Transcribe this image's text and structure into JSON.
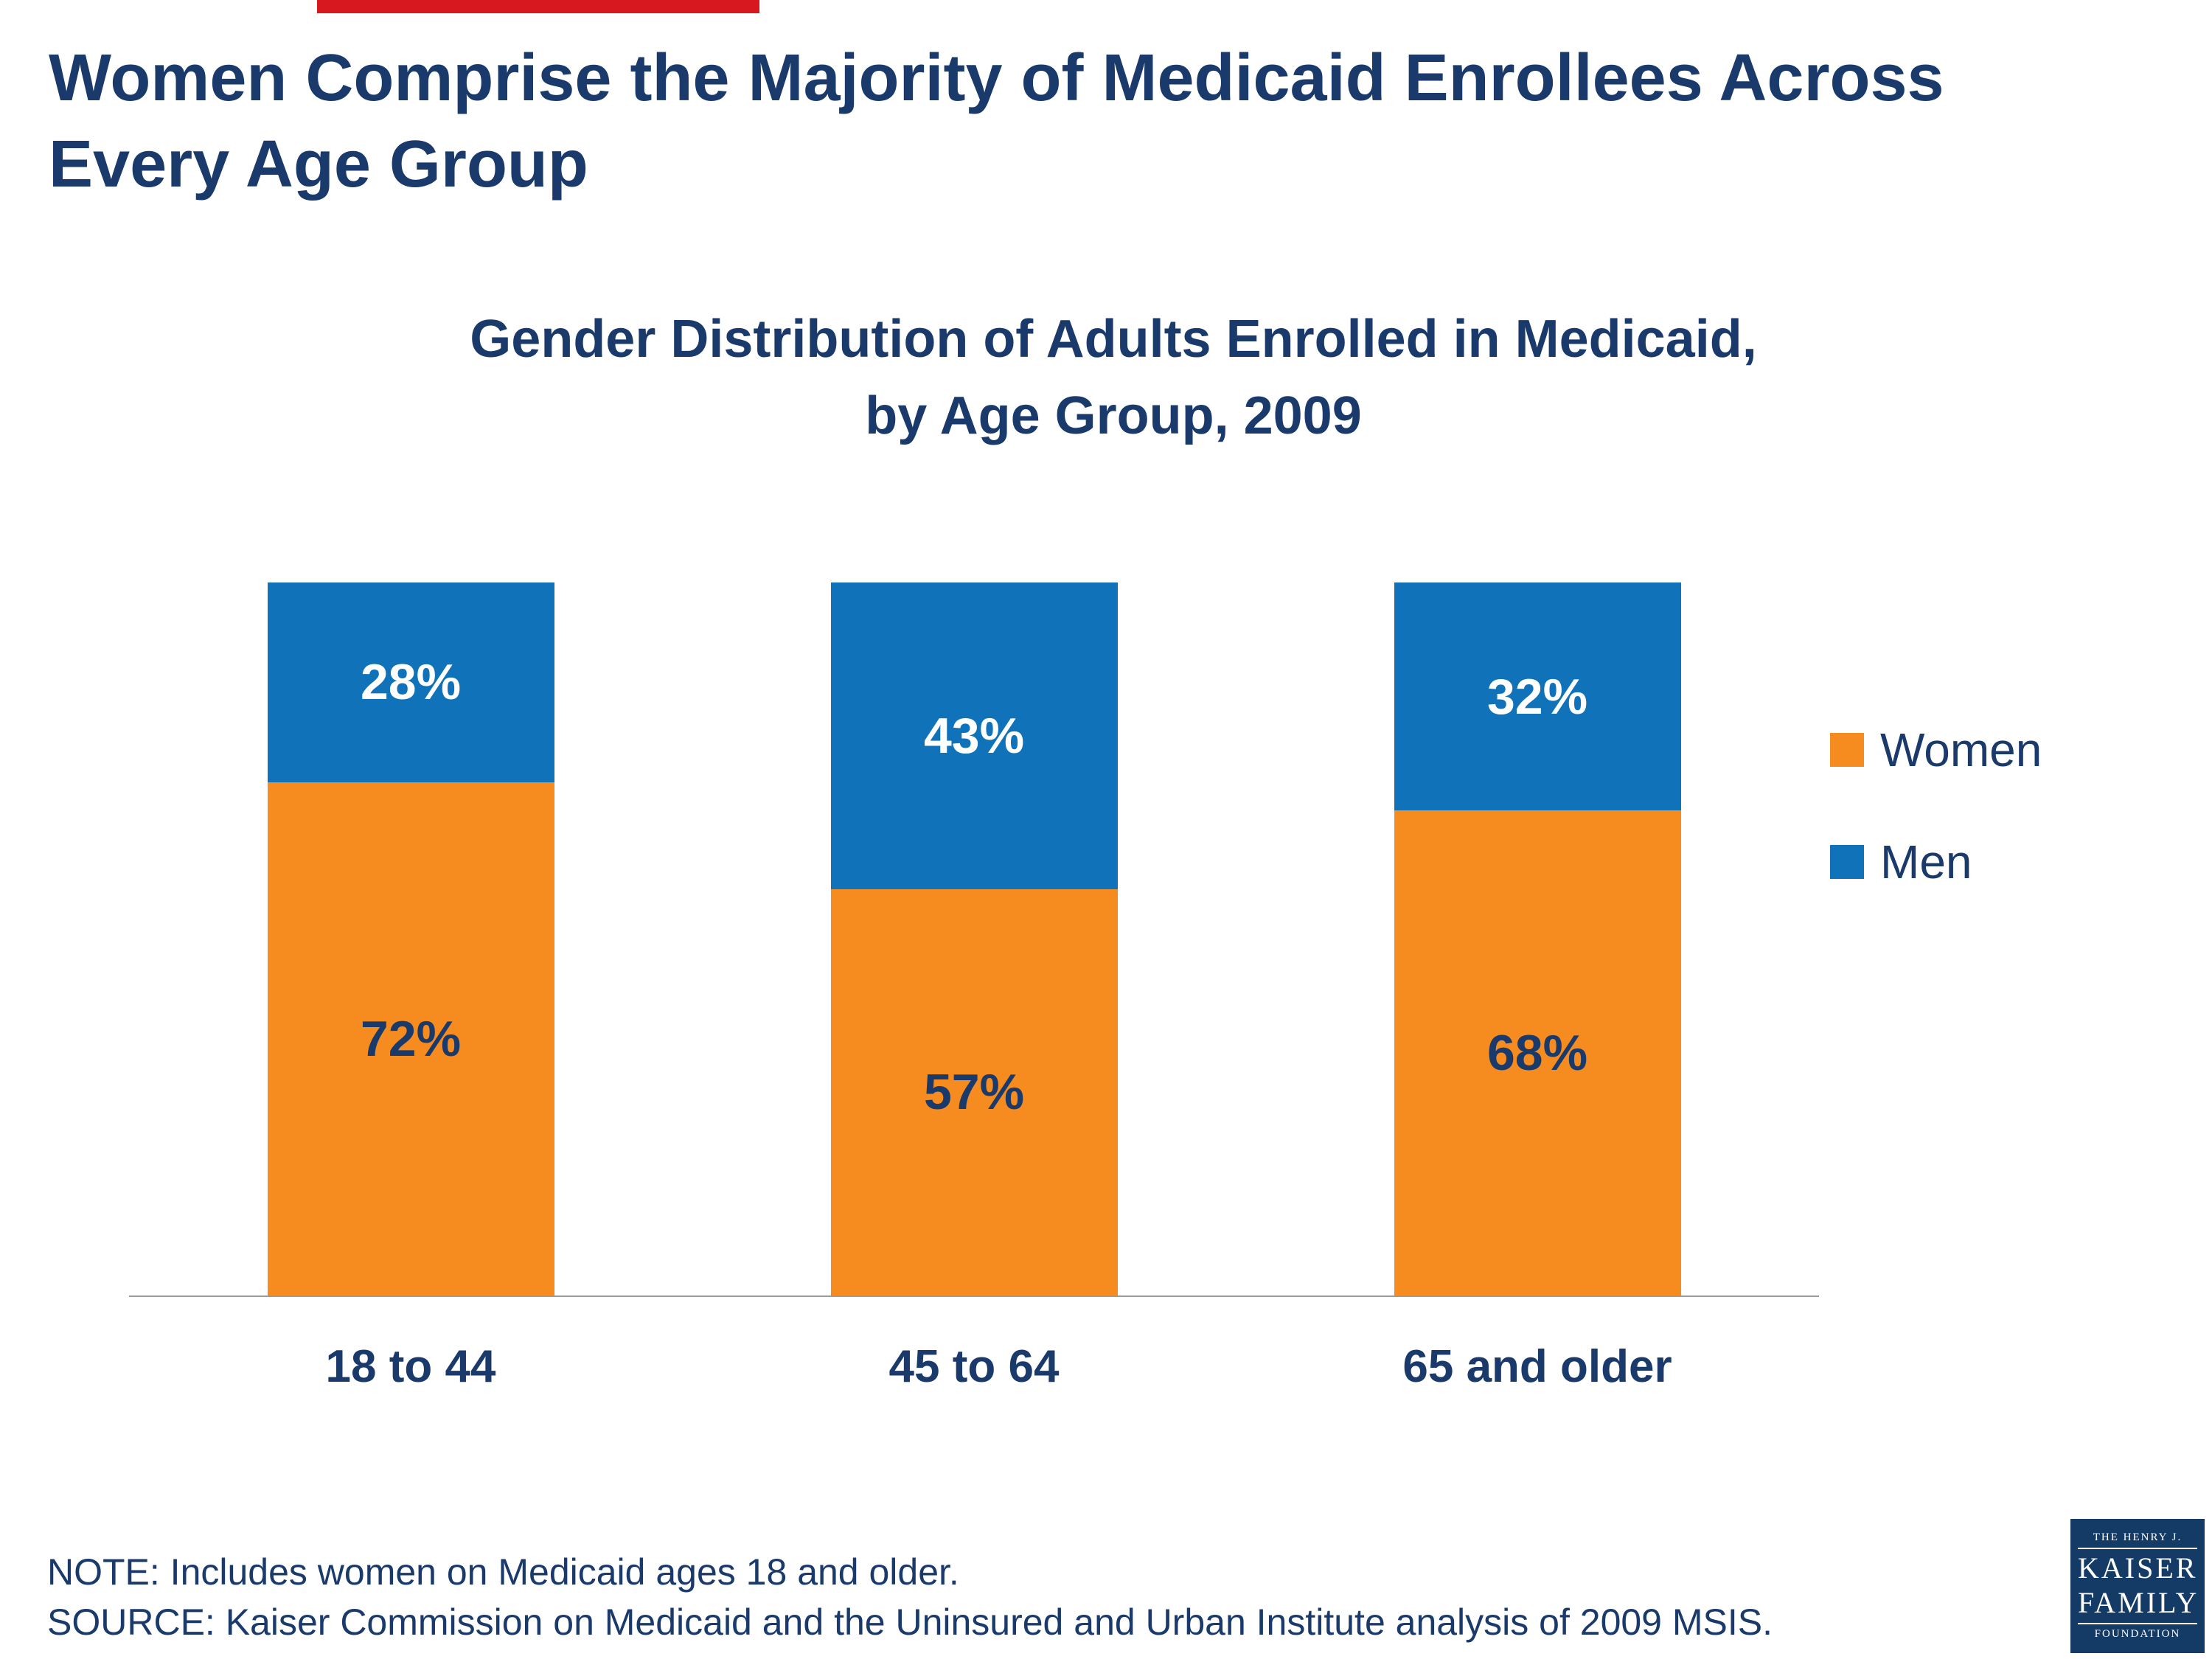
{
  "page": {
    "title_line1": "Women Comprise the Majority of Medicaid Enrollees Across",
    "title_line2": "Every Age Group",
    "note": "NOTE:  Includes women on Medicaid ages 18 and older.",
    "source": "SOURCE: Kaiser Commission on Medicaid and the Uninsured and Urban Institute analysis of 2009 MSIS."
  },
  "chart_data": {
    "type": "bar",
    "stacked": true,
    "title_line1": "Gender Distribution of Adults Enrolled in Medicaid,",
    "title_line2": "by Age Group, 2009",
    "categories": [
      "18 to 44",
      "45 to 64",
      "65 and older"
    ],
    "series": [
      {
        "name": "Women",
        "color": "#F68B1F",
        "label_color": "#1a3a6b",
        "values": [
          72,
          57,
          68
        ]
      },
      {
        "name": "Men",
        "color": "#1072B8",
        "label_color": "#ffffff",
        "values": [
          28,
          43,
          32
        ]
      }
    ],
    "value_suffix": "%",
    "ylim": [
      0,
      100
    ],
    "grid": false,
    "legend_position": "right"
  },
  "colors": {
    "title_navy": "#1a3a6b",
    "women_orange": "#F68B1F",
    "men_blue": "#1072B8",
    "accent_red": "#D7191F",
    "axis_gray": "#9b9b9b",
    "logo_navy": "#143A66"
  },
  "logo": {
    "line1": "THE HENRY J.",
    "line2": "KAISER",
    "line3": "FAMILY",
    "line4": "FOUNDATION"
  }
}
